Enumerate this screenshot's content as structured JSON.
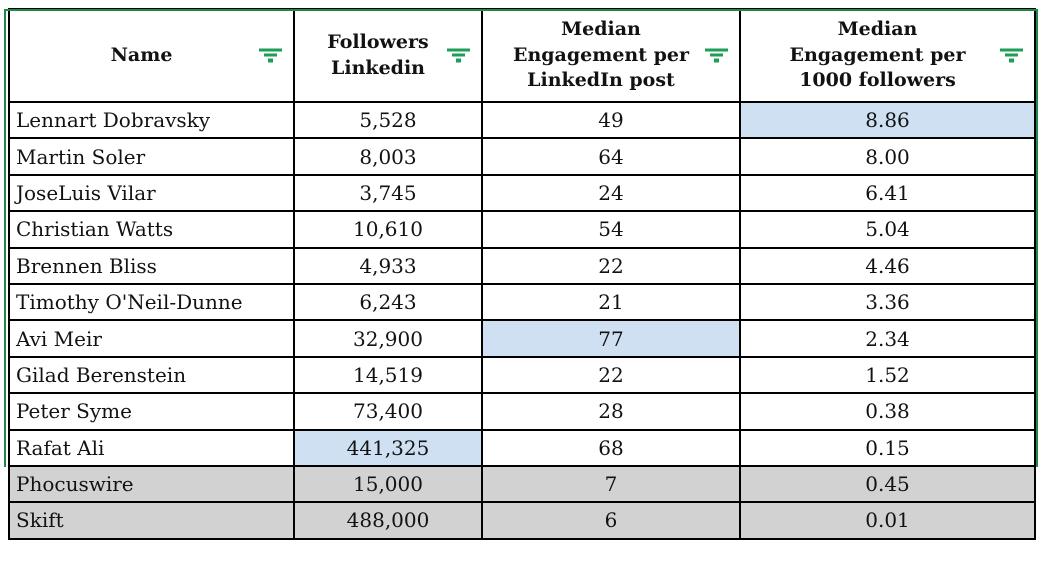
{
  "table": {
    "columns": [
      {
        "id": "name",
        "lines": [
          "Name"
        ]
      },
      {
        "id": "followers",
        "lines": [
          "Followers",
          "Linkedin"
        ]
      },
      {
        "id": "eng_post",
        "lines": [
          "Median",
          "Engagement per",
          "LinkedIn post"
        ]
      },
      {
        "id": "eng_1000",
        "lines": [
          "Median",
          "Engagement per",
          "1000 followers"
        ]
      }
    ],
    "rows": [
      {
        "name": "Lennart Dobravsky",
        "followers": "5,528",
        "eng_post": "49",
        "eng_1000": "8.86",
        "highlight": "eng_1000",
        "section": "person"
      },
      {
        "name": "Martin Soler",
        "followers": "8,003",
        "eng_post": "64",
        "eng_1000": "8.00",
        "highlight": null,
        "section": "person"
      },
      {
        "name": "JoseLuis Vilar",
        "followers": "3,745",
        "eng_post": "24",
        "eng_1000": "6.41",
        "highlight": null,
        "section": "person"
      },
      {
        "name": "Christian Watts",
        "followers": "10,610",
        "eng_post": "54",
        "eng_1000": "5.04",
        "highlight": null,
        "section": "person"
      },
      {
        "name": "Brennen Bliss",
        "followers": "4,933",
        "eng_post": "22",
        "eng_1000": "4.46",
        "highlight": null,
        "section": "person"
      },
      {
        "name": "Timothy O'Neil-Dunne",
        "followers": "6,243",
        "eng_post": "21",
        "eng_1000": "3.36",
        "highlight": null,
        "section": "person"
      },
      {
        "name": "Avi Meir",
        "followers": "32,900",
        "eng_post": "77",
        "eng_1000": "2.34",
        "highlight": "eng_post",
        "section": "person"
      },
      {
        "name": "Gilad Berenstein",
        "followers": "14,519",
        "eng_post": "22",
        "eng_1000": "1.52",
        "highlight": null,
        "section": "person"
      },
      {
        "name": "Peter Syme",
        "followers": "73,400",
        "eng_post": "28",
        "eng_1000": "0.38",
        "highlight": null,
        "section": "person"
      },
      {
        "name": "Rafat Ali",
        "followers": "441,325",
        "eng_post": "68",
        "eng_1000": "0.15",
        "highlight": "followers",
        "section": "person"
      },
      {
        "name": "Phocuswire",
        "followers": "15,000",
        "eng_post": "7",
        "eng_1000": "0.45",
        "highlight": null,
        "section": "brand"
      },
      {
        "name": "Skift",
        "followers": "488,000",
        "eng_post": "6",
        "eng_1000": "0.01",
        "highlight": null,
        "section": "brand"
      }
    ]
  },
  "icons": {
    "filter": "filter-icon"
  },
  "colors": {
    "filter_icon_green": "#1f9d55",
    "range_border_green": "#1c8a46",
    "highlight_blue": "#cfe0f3",
    "muted_row_gray": "#d2d2d2",
    "border_black": "#000000",
    "text_color": "#121212",
    "background": "#ffffff"
  }
}
